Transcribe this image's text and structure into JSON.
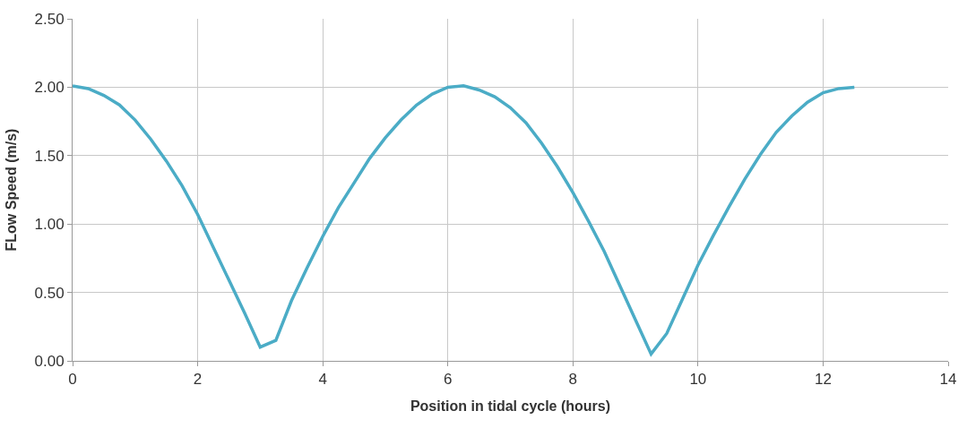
{
  "chart_data": {
    "type": "line",
    "xlabel": "Position in tidal cycle (hours)",
    "ylabel": "FLow Speed (m/s)",
    "x": [
      0,
      0.25,
      0.5,
      0.75,
      1,
      1.25,
      1.5,
      1.75,
      2,
      2.25,
      2.5,
      2.75,
      3,
      3.25,
      3.5,
      3.75,
      4,
      4.25,
      4.5,
      4.75,
      5,
      5.25,
      5.5,
      5.75,
      6,
      6.25,
      6.5,
      6.75,
      7,
      7.25,
      7.5,
      7.75,
      8,
      8.25,
      8.5,
      8.75,
      9,
      9.25,
      9.5,
      9.75,
      10,
      10.25,
      10.5,
      10.75,
      11,
      11.25,
      11.5,
      11.75,
      12,
      12.25,
      12.5
    ],
    "series": [
      {
        "color": "#4bacc6",
        "values": [
          2.01,
          1.99,
          1.94,
          1.87,
          1.76,
          1.62,
          1.46,
          1.28,
          1.07,
          0.83,
          0.59,
          0.35,
          0.1,
          0.15,
          0.44,
          0.68,
          0.91,
          1.12,
          1.3,
          1.48,
          1.63,
          1.76,
          1.87,
          1.95,
          2.0,
          2.01,
          1.98,
          1.93,
          1.85,
          1.74,
          1.59,
          1.42,
          1.23,
          1.02,
          0.8,
          0.55,
          0.3,
          0.05,
          0.2,
          0.45,
          0.7,
          0.92,
          1.13,
          1.33,
          1.51,
          1.67,
          1.79,
          1.89,
          1.96,
          1.99,
          2.0
        ]
      }
    ],
    "xlim": [
      0,
      14
    ],
    "xticks": [
      0,
      2,
      4,
      6,
      8,
      10,
      12,
      14
    ],
    "ylim": [
      0,
      2.5
    ],
    "yticks": [
      {
        "value": 0,
        "label": "0.00"
      },
      {
        "value": 0.5,
        "label": "0.50"
      },
      {
        "value": 1,
        "label": "1.00"
      },
      {
        "value": 1.5,
        "label": "1.50"
      },
      {
        "value": 2,
        "label": "2.00"
      },
      {
        "value": 2.5,
        "label": "2.50"
      }
    ],
    "grid": true,
    "marker": "none",
    "line_style": "solid",
    "legend": false
  }
}
